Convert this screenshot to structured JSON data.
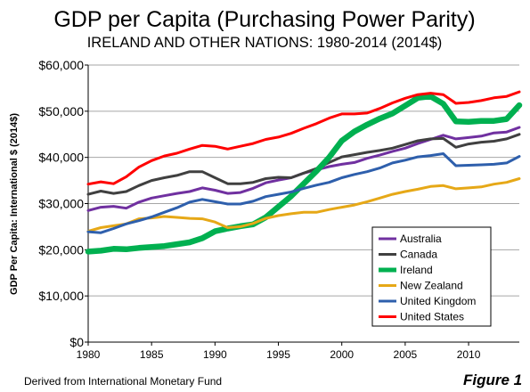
{
  "chart_data": {
    "type": "line",
    "title": "GDP per Capita (Purchasing Power Parity)",
    "subtitle": "IRELAND AND OTHER NATIONS: 1980-2014 (2014$)",
    "ylabel": "GDP Per Capita: International $ (2014$)",
    "xlabel": "",
    "xlim": [
      1980,
      2014
    ],
    "ylim": [
      0,
      60000
    ],
    "yticks": [
      0,
      10000,
      20000,
      30000,
      40000,
      50000,
      60000
    ],
    "ytick_labels": [
      "$0",
      "$10,000",
      "$20,000",
      "$30,000",
      "$40,000",
      "$50,000",
      "$60,000"
    ],
    "xticks": [
      1980,
      1985,
      1990,
      1995,
      2000,
      2005,
      2010
    ],
    "xtick_labels": [
      "1980",
      "1985",
      "1990",
      "1995",
      "2000",
      "2005",
      "2010"
    ],
    "grid": "horizontal",
    "legend_position": "bottom-right",
    "x": [
      1980,
      1981,
      1982,
      1983,
      1984,
      1985,
      1986,
      1987,
      1988,
      1989,
      1990,
      1991,
      1992,
      1993,
      1994,
      1995,
      1996,
      1997,
      1998,
      1999,
      2000,
      2001,
      2002,
      2003,
      2004,
      2005,
      2006,
      2007,
      2008,
      2009,
      2010,
      2011,
      2012,
      2013,
      2014
    ],
    "series": [
      {
        "name": "Australia",
        "color": "#7030A0",
        "width": 3,
        "values": [
          28500,
          29200,
          29400,
          29000,
          30300,
          31200,
          31700,
          32200,
          32600,
          33400,
          32900,
          32200,
          32400,
          33300,
          34500,
          35100,
          35600,
          36600,
          37300,
          38000,
          38500,
          38900,
          39800,
          40500,
          41300,
          42000,
          43000,
          43900,
          44800,
          44000,
          44300,
          44600,
          45300,
          45500,
          46500
        ]
      },
      {
        "name": "Canada",
        "color": "#404040",
        "width": 3,
        "values": [
          32000,
          32700,
          32200,
          32600,
          33900,
          35000,
          35600,
          36100,
          36900,
          36900,
          35600,
          34300,
          34300,
          34600,
          35400,
          35700,
          35600,
          36600,
          37600,
          38900,
          40100,
          40600,
          41100,
          41500,
          42000,
          42800,
          43600,
          44000,
          44100,
          42200,
          42900,
          43300,
          43500,
          44000,
          45000
        ]
      },
      {
        "name": "Ireland",
        "color": "#00B050",
        "width": 6.5,
        "values": [
          19600,
          19800,
          20200,
          20100,
          20400,
          20600,
          20800,
          21200,
          21600,
          22500,
          24000,
          24600,
          25100,
          25500,
          27000,
          29300,
          31600,
          34300,
          37000,
          40000,
          43600,
          45600,
          47100,
          48400,
          49500,
          51200,
          52900,
          53200,
          51600,
          47800,
          47700,
          47900,
          47900,
          48300,
          51300
        ]
      },
      {
        "name": "New Zealand",
        "color": "#E6A817",
        "width": 3,
        "values": [
          24000,
          24800,
          25200,
          25600,
          26700,
          26900,
          27200,
          27000,
          26800,
          26700,
          26000,
          24800,
          25000,
          25700,
          26800,
          27400,
          27800,
          28100,
          28100,
          28700,
          29200,
          29700,
          30400,
          31200,
          32000,
          32600,
          33100,
          33700,
          33900,
          33200,
          33400,
          33600,
          34200,
          34600,
          35400
        ]
      },
      {
        "name": "United Kingdom",
        "color": "#2E5FAC",
        "width": 3,
        "values": [
          23900,
          23700,
          24600,
          25600,
          26300,
          27100,
          28100,
          29100,
          30300,
          30900,
          30400,
          29900,
          29900,
          30500,
          31500,
          32000,
          32500,
          33300,
          34000,
          34600,
          35600,
          36300,
          36900,
          37700,
          38800,
          39400,
          40100,
          40400,
          40800,
          38200,
          38300,
          38400,
          38500,
          38800,
          40200
        ]
      },
      {
        "name": "United States",
        "color": "#FF0000",
        "width": 3,
        "values": [
          34200,
          34700,
          34300,
          35800,
          37900,
          39300,
          40300,
          40900,
          41800,
          42600,
          42400,
          41800,
          42400,
          43000,
          43900,
          44400,
          45200,
          46300,
          47300,
          48500,
          49400,
          49400,
          49600,
          50600,
          51800,
          52800,
          53600,
          53900,
          53600,
          51700,
          51900,
          52300,
          52900,
          53200,
          54200
        ]
      }
    ]
  },
  "footer": {
    "source": "Derived from International Monetary Fund",
    "figure_label": "Figure 1"
  }
}
